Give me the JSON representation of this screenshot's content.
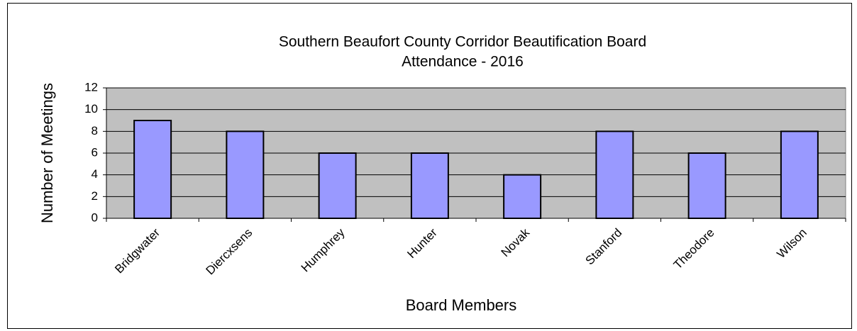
{
  "chart_data": {
    "type": "bar",
    "title": "Southern Beaufort County Corridor Beautification Board",
    "subtitle": "Attendance - 2016",
    "x_label": "Board Members",
    "y_label": "Number of Meetings",
    "categories": [
      "Bridgwater",
      "Diercxsens",
      "Humphrey",
      "Hunter",
      "Novak",
      "Stanford",
      "Theodore",
      "Wilson"
    ],
    "values": [
      9,
      8,
      6,
      6,
      4,
      8,
      6,
      8
    ],
    "color": "#9999ff",
    "ylim": [
      0,
      12
    ],
    "yticks": [
      0,
      2,
      4,
      6,
      8,
      10,
      12
    ],
    "grid": true
  }
}
